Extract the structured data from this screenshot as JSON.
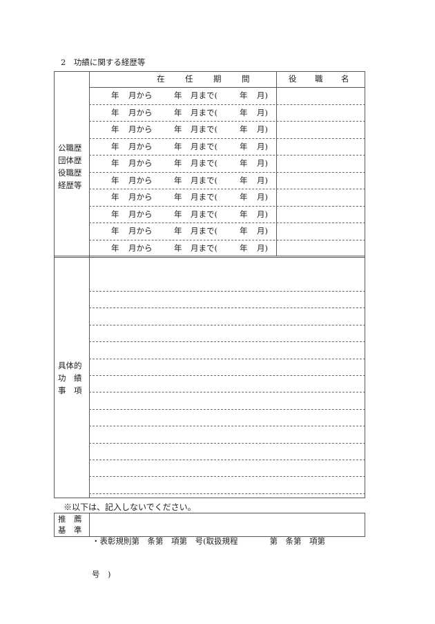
{
  "section_title": "2　功績に関する経歴等",
  "career_table": {
    "row_label": [
      "公職歴",
      "団体歴",
      "役職歴",
      "経歴等"
    ],
    "period_header": [
      "在",
      "任",
      "期",
      "間"
    ],
    "role_header": [
      "役",
      "職",
      "名"
    ],
    "row_text": {
      "y1": "年",
      "m1": "月から",
      "y2": "年",
      "m2": "月まで(",
      "y3": "年",
      "m3": "月)"
    },
    "row_count": 10
  },
  "achievements": {
    "label": [
      "具体的",
      "功　績",
      "事　項"
    ]
  },
  "note": "※以下は、記入しないでください。",
  "recommendation": {
    "label": [
      "推　薦",
      "基　準"
    ],
    "line1": "・表彰規則第　条第　項第　号(取扱規程　　　　第　条第　項第",
    "line2": "号　)"
  }
}
